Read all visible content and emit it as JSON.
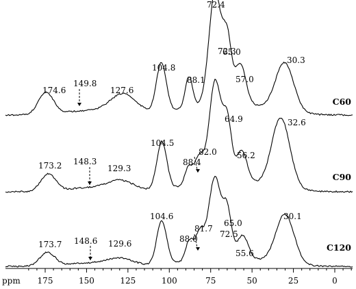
{
  "chart_data": {
    "type": "line",
    "x_axis": {
      "unit_label": "ppm",
      "range": [
        185,
        -10
      ],
      "reversed": true,
      "ticks": [
        175,
        150,
        125,
        100,
        75,
        50,
        25,
        0
      ],
      "tick_labels": [
        "175",
        "150",
        "125",
        "100",
        "75",
        "50",
        "25",
        "0"
      ]
    },
    "grid": false,
    "series": [
      {
        "name": "C60",
        "peaks": [
          {
            "ppm": 174.6,
            "label": "174.6",
            "intensity": 0.2
          },
          {
            "ppm": 149.8,
            "label": "149.8",
            "intensity": 0.04,
            "arrow": true
          },
          {
            "ppm": 127.6,
            "label": "127.6",
            "intensity": 0.18
          },
          {
            "ppm": 104.8,
            "label": "104.8",
            "intensity": 0.45
          },
          {
            "ppm": 88.1,
            "label": "88.1",
            "intensity": 0.28
          },
          {
            "ppm": 72.4,
            "label": "72.4",
            "intensity": 1.0
          },
          {
            "ppm": 65.0,
            "label": "65.0",
            "intensity": 0.55
          },
          {
            "ppm": 57.0,
            "label": "57.0",
            "intensity": 0.35
          },
          {
            "ppm": 30.3,
            "label": "30.3",
            "intensity": 0.44
          }
        ]
      },
      {
        "name": "C90",
        "peaks": [
          {
            "ppm": 173.2,
            "label": "173.2",
            "intensity": 0.17
          },
          {
            "ppm": 148.3,
            "label": "148.3",
            "intensity": 0.04,
            "arrow": true
          },
          {
            "ppm": 129.3,
            "label": "129.3",
            "intensity": 0.1
          },
          {
            "ppm": 104.5,
            "label": "104.5",
            "intensity": 0.48
          },
          {
            "ppm": 88.4,
            "label": "88.4",
            "intensity": 0.18
          },
          {
            "ppm": 82.0,
            "label": "82.0",
            "intensity": 0.26,
            "arrow": true
          },
          {
            "ppm": 72.3,
            "label": "72.3",
            "intensity": 1.0
          },
          {
            "ppm": 64.9,
            "label": "64.9",
            "intensity": 0.56
          },
          {
            "ppm": 56.2,
            "label": "56.2",
            "intensity": 0.3
          },
          {
            "ppm": 32.6,
            "label": "32.6",
            "intensity": 0.7
          }
        ]
      },
      {
        "name": "C120",
        "peaks": [
          {
            "ppm": 173.7,
            "label": "173.7",
            "intensity": 0.17
          },
          {
            "ppm": 148.6,
            "label": "148.6",
            "intensity": 0.04,
            "arrow": true
          },
          {
            "ppm": 129.6,
            "label": "129.6",
            "intensity": 0.09
          },
          {
            "ppm": 104.6,
            "label": "104.6",
            "intensity": 0.55
          },
          {
            "ppm": 88.0,
            "label": "88.0",
            "intensity": 0.24
          },
          {
            "ppm": 81.7,
            "label": "81.7",
            "intensity": 0.34,
            "arrow": true
          },
          {
            "ppm": 72.5,
            "label": "72.5",
            "intensity": 1.0
          },
          {
            "ppm": 65.0,
            "label": "65.0",
            "intensity": 0.57
          },
          {
            "ppm": 55.6,
            "label": "55.6",
            "intensity": 0.28
          },
          {
            "ppm": 30.1,
            "label": "30.1",
            "intensity": 0.62
          }
        ]
      }
    ]
  }
}
